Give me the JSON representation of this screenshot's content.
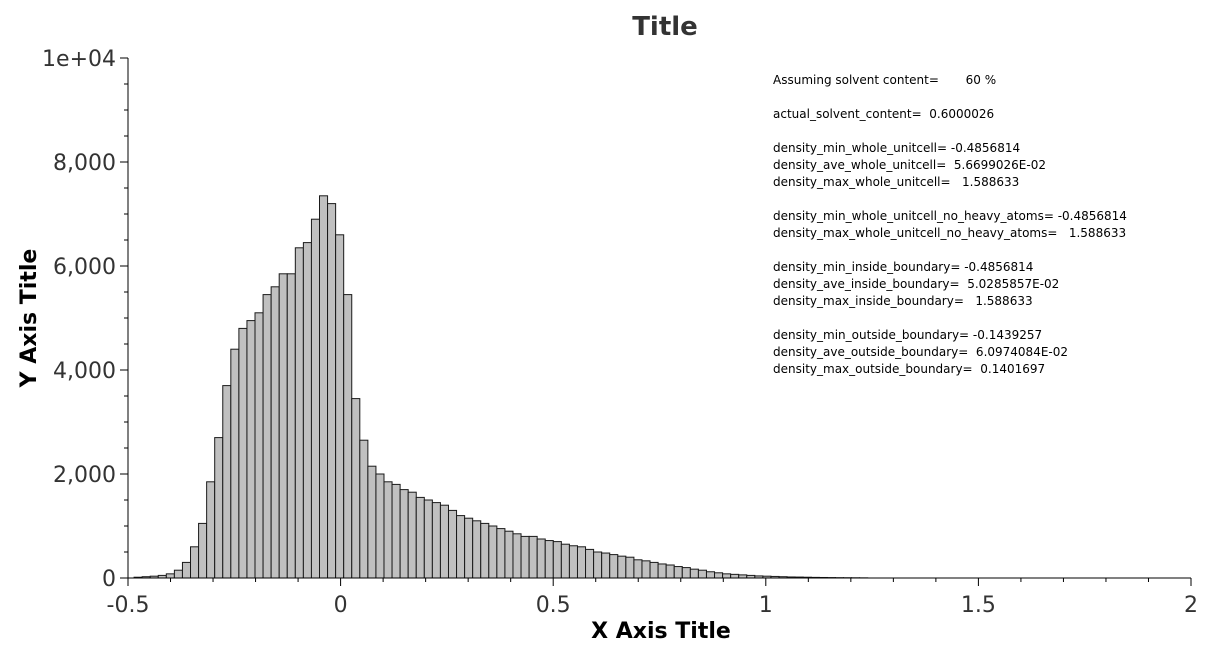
{
  "chart_data": {
    "type": "bar",
    "title": "Title",
    "xlabel": "X Axis Title",
    "ylabel": "Y Axis Title",
    "xlim": [
      -0.5,
      2
    ],
    "ylim": [
      0,
      10000
    ],
    "xticks": [
      "-0.5",
      "0",
      "0.5",
      "1",
      "1.5",
      "2"
    ],
    "yticks": [
      "0",
      "2,000",
      "4,000",
      "6,000",
      "8,000",
      "1e+04"
    ],
    "bin_width": 0.01896,
    "bin_start": -0.4857,
    "values": [
      15,
      25,
      35,
      50,
      80,
      150,
      300,
      600,
      1050,
      1850,
      2700,
      3700,
      4400,
      4800,
      4950,
      5100,
      5450,
      5600,
      5850,
      5850,
      6350,
      6450,
      6900,
      7350,
      7200,
      6600,
      5450,
      3450,
      2650,
      2150,
      2000,
      1850,
      1800,
      1700,
      1650,
      1550,
      1500,
      1450,
      1400,
      1300,
      1200,
      1150,
      1100,
      1050,
      1000,
      950,
      900,
      850,
      800,
      800,
      750,
      720,
      700,
      650,
      620,
      600,
      550,
      500,
      480,
      450,
      420,
      400,
      350,
      330,
      300,
      270,
      250,
      220,
      200,
      170,
      150,
      120,
      100,
      80,
      70,
      60,
      50,
      40,
      35,
      30,
      25,
      20,
      18,
      15,
      12,
      10,
      8,
      6,
      5,
      4,
      3
    ]
  },
  "annotation": {
    "lines": [
      "Assuming solvent content=       60 %",
      "",
      "actual_solvent_content=  0.6000026",
      "",
      "density_min_whole_unitcell= -0.4856814",
      "density_ave_whole_unitcell=  5.6699026E-02",
      "density_max_whole_unitcell=   1.588633",
      "",
      "density_min_whole_unitcell_no_heavy_atoms= -0.4856814",
      "density_max_whole_unitcell_no_heavy_atoms=   1.588633",
      "",
      "density_min_inside_boundary= -0.4856814",
      "density_ave_inside_boundary=  5.0285857E-02",
      "density_max_inside_boundary=   1.588633",
      "",
      "density_min_outside_boundary= -0.1439257",
      "density_ave_outside_boundary=  6.0974084E-02",
      "density_max_outside_boundary=  0.1401697"
    ]
  },
  "colors": {
    "bar_fill": "#c0c0c0",
    "bar_stroke": "#1a1a1a",
    "axis": "#000000",
    "text": "#333333"
  }
}
